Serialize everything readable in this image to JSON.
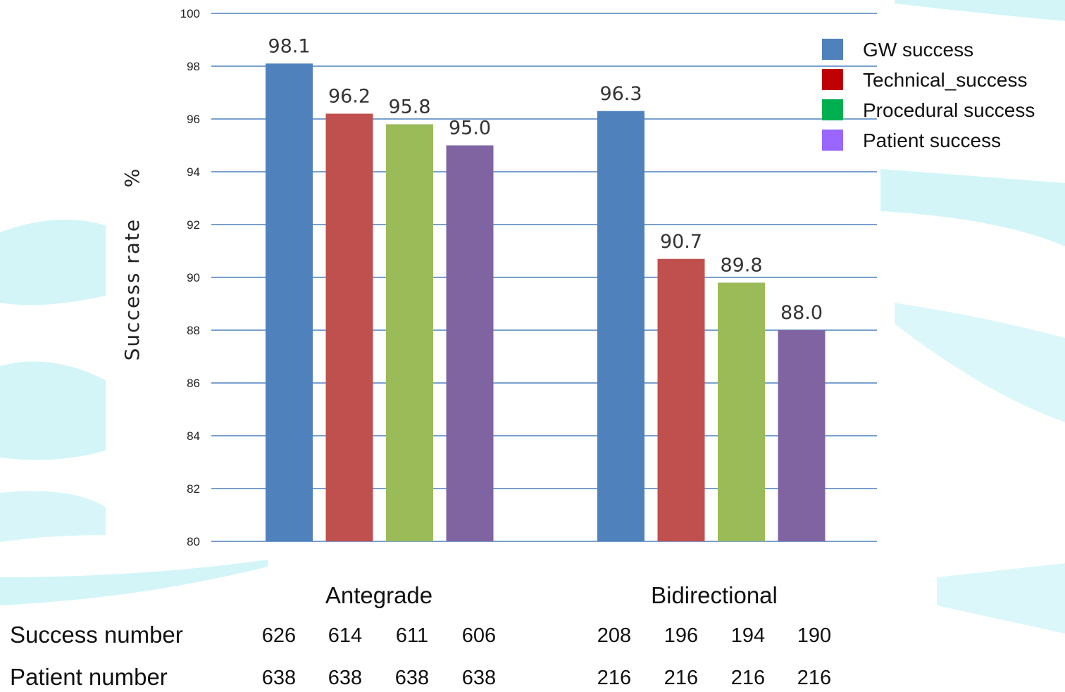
{
  "colors": {
    "gw": "#4f81bd",
    "technical": "#c0504d",
    "procedural": "#9bbb59",
    "patient": "#8064a2",
    "legend_gw": "#4f81bd",
    "legend_technical": "#c00000",
    "legend_procedural": "#00b050",
    "legend_patient": "#9966ff",
    "gridline": "#4f81bd",
    "background_accent": "#c9f2f6"
  },
  "chart_data": {
    "type": "bar",
    "title": "",
    "xlabel": "",
    "ylabel": "Success rate    %",
    "ylim": [
      80,
      100
    ],
    "yticks": [
      "80",
      "82",
      "84",
      "86",
      "88",
      "90",
      "92",
      "94",
      "96",
      "98",
      "100"
    ],
    "grid": true,
    "legend_position": "top-right",
    "categories": [
      "Antegrade",
      "Bidirectional"
    ],
    "series": [
      {
        "name": "GW success",
        "values": [
          98.1,
          96.3
        ],
        "labels": [
          "98.1",
          "96.3"
        ]
      },
      {
        "name": "Technical_success",
        "values": [
          96.2,
          90.7
        ],
        "labels": [
          "96.2",
          "90.7"
        ]
      },
      {
        "name": "Procedural success",
        "values": [
          95.8,
          89.8
        ],
        "labels": [
          "95.8",
          "89.8"
        ]
      },
      {
        "name": "Patient success",
        "values": [
          95.0,
          88.0
        ],
        "labels": [
          "95.0",
          "88.0"
        ]
      }
    ]
  },
  "table": {
    "rows": [
      {
        "label": "Success number",
        "values": [
          "626",
          "614",
          "611",
          "606",
          "208",
          "196",
          "194",
          "190"
        ]
      },
      {
        "label": "Patient number",
        "values": [
          "638",
          "638",
          "638",
          "638",
          "216",
          "216",
          "216",
          "216"
        ]
      }
    ]
  }
}
